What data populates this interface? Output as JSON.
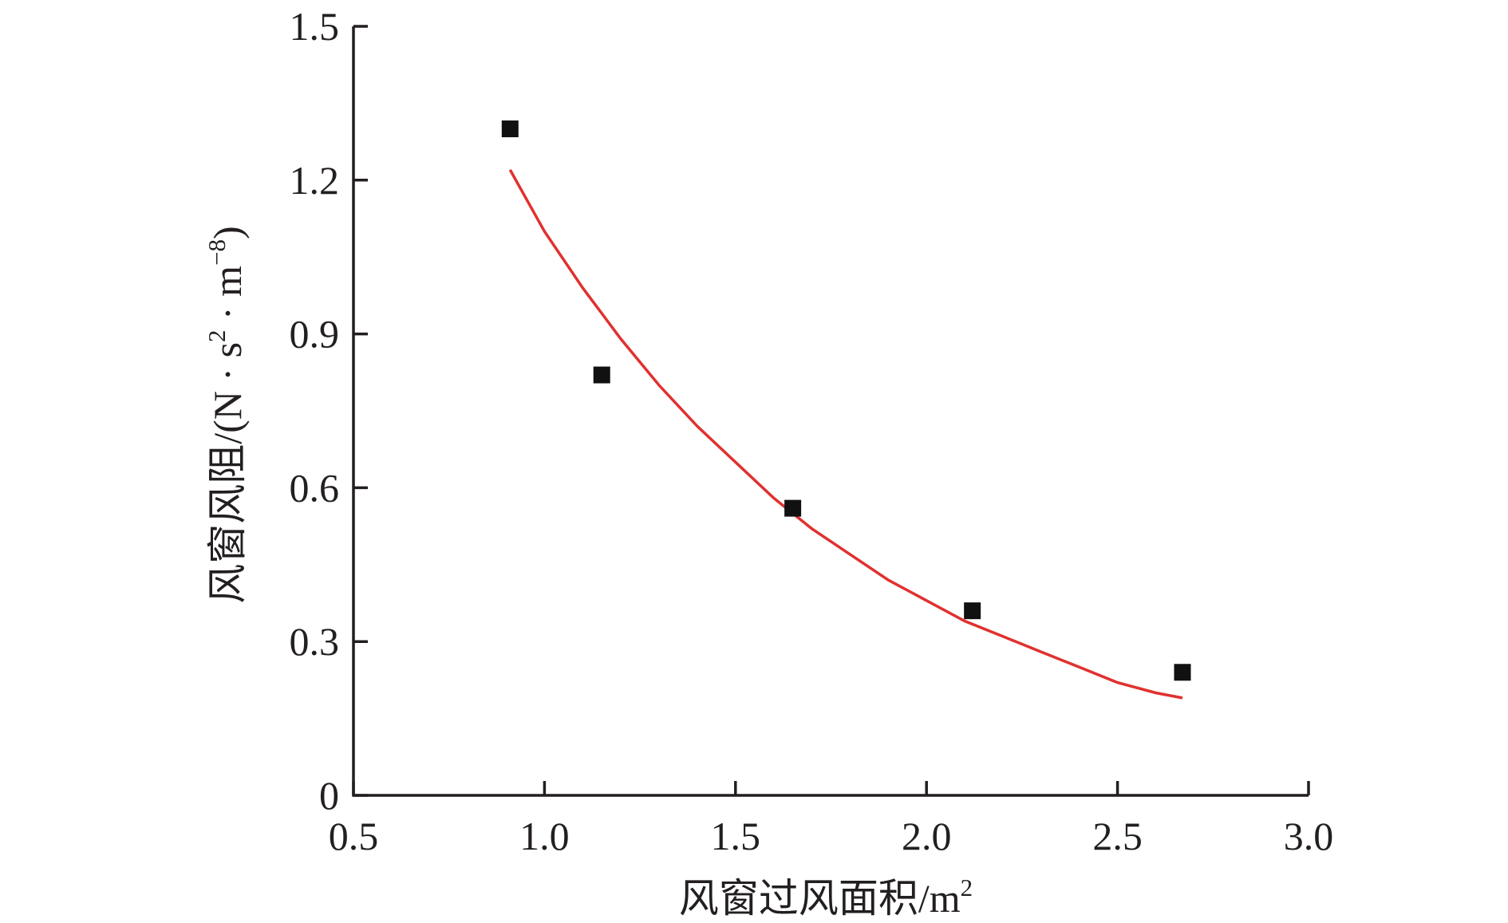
{
  "chart_data": {
    "type": "scatter",
    "title": "",
    "xlabel": "风窗过风面积/m",
    "xlabel_superscript": "2",
    "ylabel": "风窗风阻/(N · s",
    "ylabel_superscript_1": "2",
    "ylabel_middle": " · m",
    "ylabel_superscript_2": "−8",
    "ylabel_end": ")",
    "xlim": [
      0.5,
      3.0
    ],
    "ylim": [
      0,
      1.5
    ],
    "xticks": [
      0.5,
      1.0,
      1.5,
      2.0,
      2.5,
      3.0
    ],
    "xtick_labels": [
      "0.5",
      "1.0",
      "1.5",
      "2.0",
      "2.5",
      "3.0"
    ],
    "yticks": [
      0,
      0.3,
      0.6,
      0.9,
      1.2,
      1.5
    ],
    "ytick_labels": [
      "0",
      "0.3",
      "0.6",
      "0.9",
      "1.2",
      "1.5"
    ],
    "grid": false,
    "legend": false,
    "series": [
      {
        "kind": "points",
        "marker": "square",
        "color": "#111111",
        "x": [
          0.91,
          1.15,
          1.65,
          2.12,
          2.67
        ],
        "y": [
          1.3,
          0.82,
          0.56,
          0.36,
          0.24
        ]
      },
      {
        "kind": "fit-line",
        "color": "#e0312f",
        "x": [
          0.91,
          1.0,
          1.1,
          1.2,
          1.3,
          1.4,
          1.5,
          1.6,
          1.7,
          1.8,
          1.9,
          2.0,
          2.1,
          2.2,
          2.3,
          2.4,
          2.5,
          2.6,
          2.67
        ],
        "y": [
          1.22,
          1.1,
          0.99,
          0.89,
          0.8,
          0.72,
          0.65,
          0.58,
          0.52,
          0.47,
          0.42,
          0.38,
          0.34,
          0.31,
          0.28,
          0.25,
          0.22,
          0.2,
          0.19
        ]
      }
    ]
  }
}
